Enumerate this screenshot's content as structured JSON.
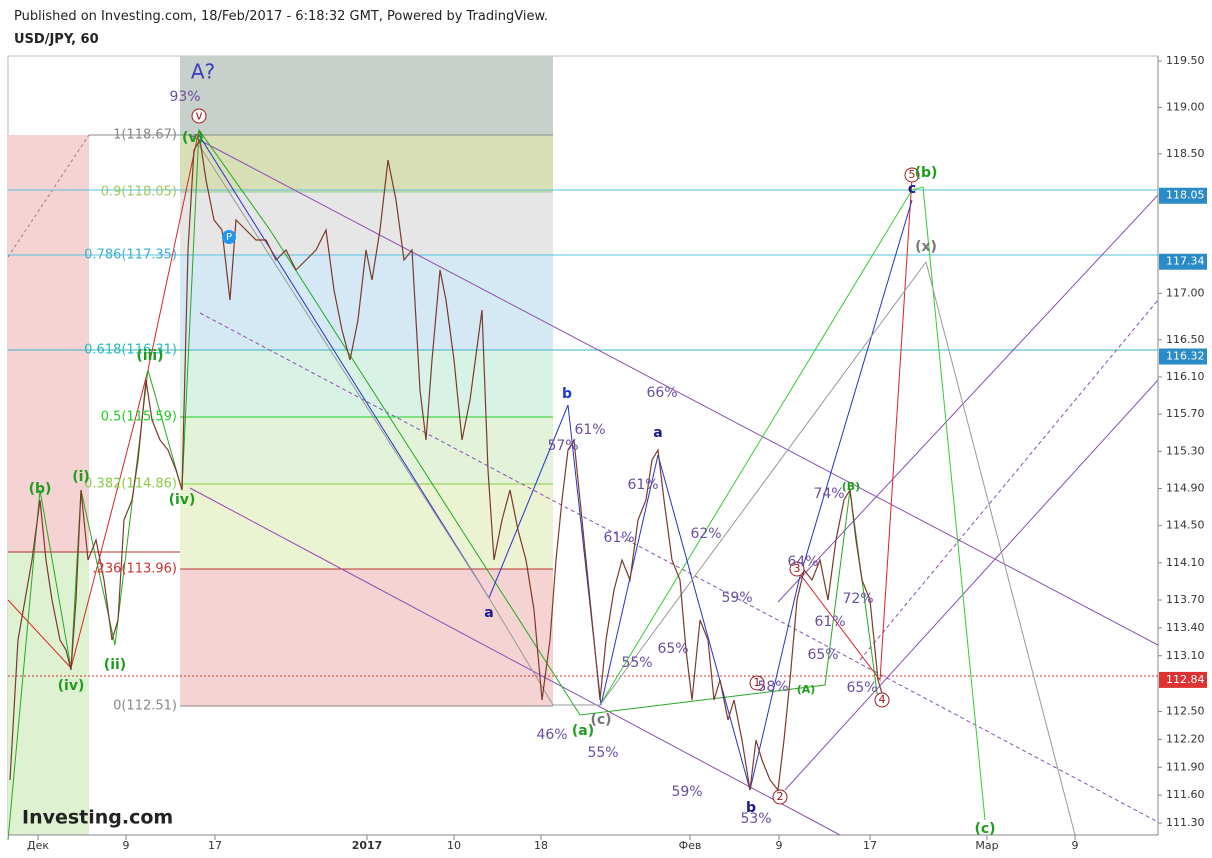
{
  "header": {
    "published": "Published on Investing.com, 18/Feb/2017 - 6:18:32 GMT, Powered by TradingView.",
    "symbol": "USD/JPY, 60"
  },
  "price_axis": {
    "labels": [
      "119.50",
      "119.00",
      "118.50",
      "117.00",
      "116.50",
      "116.10",
      "115.70",
      "115.30",
      "114.90",
      "114.50",
      "114.10",
      "113.70",
      "113.40",
      "113.10",
      "112.50",
      "112.20",
      "111.90",
      "111.60",
      "111.30"
    ],
    "tags": [
      "118.05",
      "117.34",
      "116.32",
      "112.84"
    ]
  },
  "time_axis": {
    "labels": [
      "Дек",
      "9",
      "17",
      "2017",
      "10",
      "18",
      "Фев",
      "9",
      "17",
      "Мар",
      "9"
    ]
  },
  "fib_levels": [
    "1(118.67)",
    "0.9(118.05)",
    "0.786(117.35)",
    "0.618(116.31)",
    "0.5(115.59)",
    "0.382(114.86)",
    ".236(113.96)",
    "0(112.51)"
  ],
  "annotations": [
    "A?",
    "93%",
    "v",
    "(v)",
    "(iii)",
    "(b)",
    "(i)",
    "(iv)",
    "(ii)",
    "(iv)",
    "b",
    "61%",
    "57%",
    "a",
    "a",
    "66%",
    "61%",
    "61%",
    "62%",
    "59%",
    "55%",
    "65%",
    "46%",
    "(a)",
    "(c)",
    "55%",
    "59%",
    "b",
    "53%",
    "1",
    "58%",
    "2",
    "3",
    "64%",
    "74%",
    "(B)",
    "72%",
    "61%",
    "65%",
    "(A)",
    "65%",
    "4",
    "5",
    "(b)",
    "c",
    "(x)",
    "(c)",
    "P"
  ],
  "logo": "Investing.com"
}
